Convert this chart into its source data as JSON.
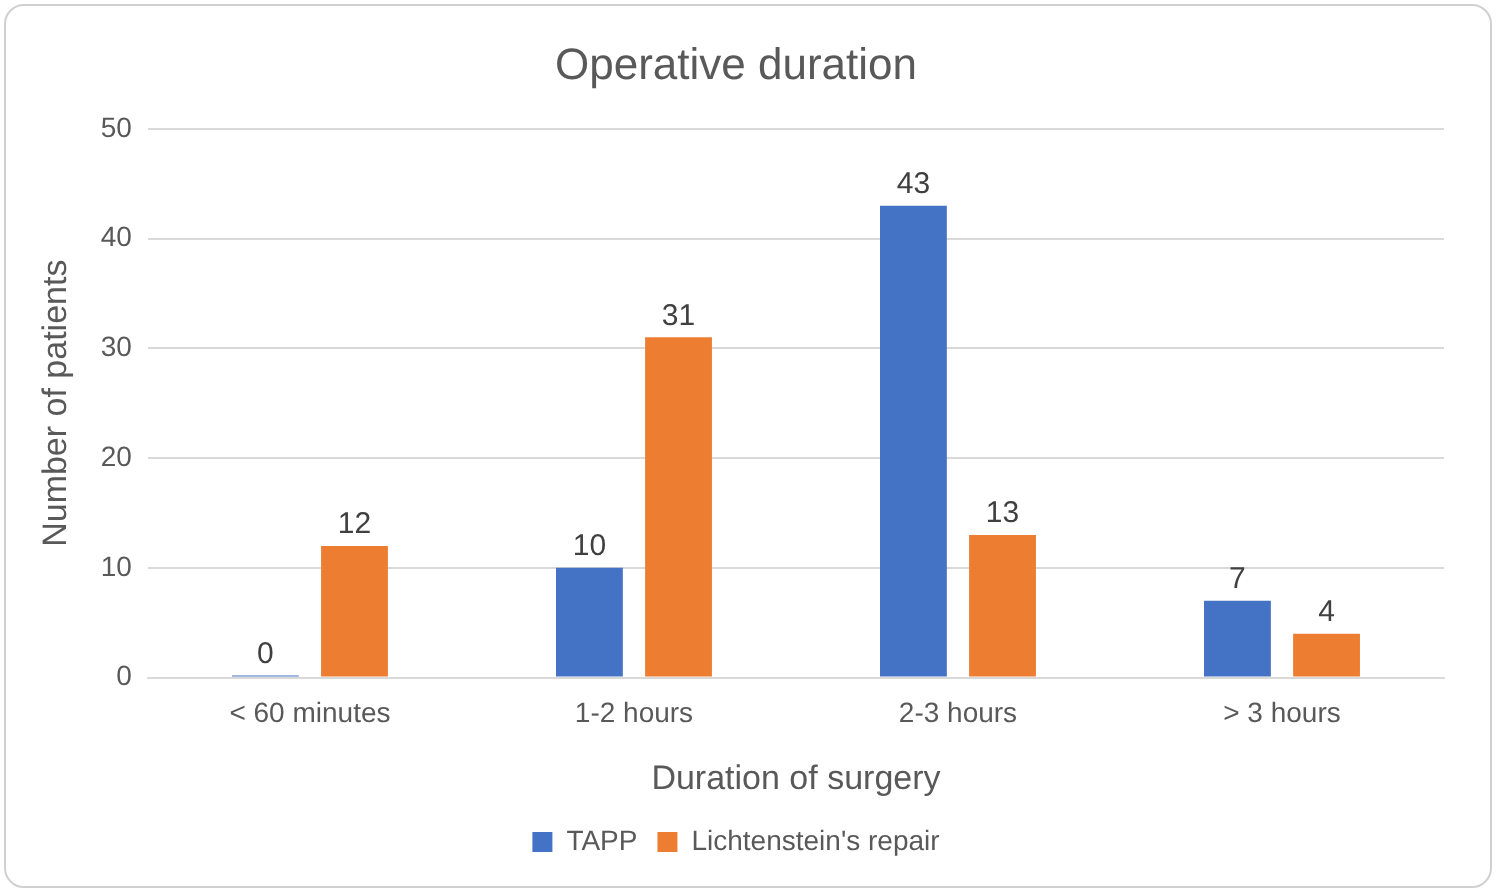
{
  "chart_data": {
    "type": "bar",
    "title": "Operative duration",
    "xlabel": "Duration of surgery",
    "ylabel": "Number of patients",
    "categories": [
      "< 60 minutes",
      "1-2 hours",
      "2-3 hours",
      "> 3 hours"
    ],
    "series": [
      {
        "name": "TAPP",
        "color": "#4472c4",
        "values": [
          0,
          10,
          43,
          7
        ]
      },
      {
        "name": "Lichtenstein's repair",
        "color": "#ed7d31",
        "values": [
          12,
          31,
          13,
          4
        ]
      }
    ],
    "ylim": [
      0,
      50
    ],
    "yticks": [
      0,
      10,
      20,
      30,
      40,
      50
    ],
    "grid": "y",
    "legend": "bottom",
    "data_labels": true
  }
}
